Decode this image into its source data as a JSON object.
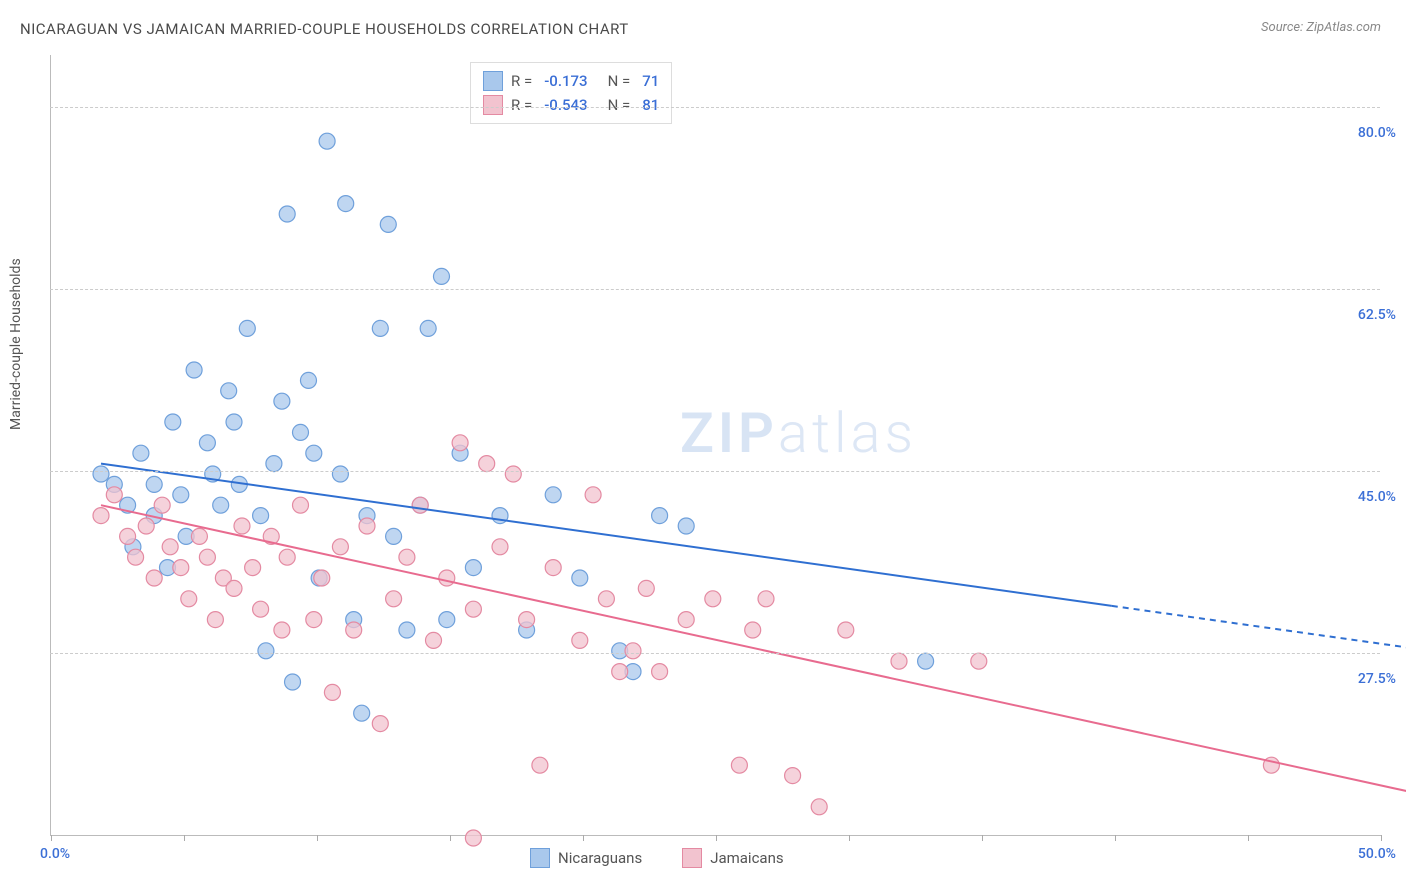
{
  "title": "NICARAGUAN VS JAMAICAN MARRIED-COUPLE HOUSEHOLDS CORRELATION CHART",
  "source_label": "Source: ZipAtlas.com",
  "ylabel": "Married-couple Households",
  "watermark": "ZIPatlas",
  "chart": {
    "type": "scatter",
    "background_color": "#ffffff",
    "grid_color": "#cccccc",
    "grid_dash": "4,4",
    "xlim": [
      0,
      50
    ],
    "ylim": [
      10,
      85
    ],
    "xticks": [
      0,
      5,
      10,
      15,
      20,
      25,
      30,
      35,
      40,
      45,
      50
    ],
    "xtick_labels_shown": {
      "0": "0.0%",
      "50": "50.0%"
    },
    "yticks": [
      27.5,
      45.0,
      62.5,
      80.0
    ],
    "ytick_labels": [
      "27.5%",
      "45.0%",
      "62.5%",
      "80.0%"
    ],
    "tick_label_color": "#3b6fd6",
    "tick_label_fontsize": 14,
    "ylabel_fontsize": 14,
    "series": [
      {
        "name": "Nicaraguans",
        "marker_fill": "#a9c8ec",
        "marker_stroke": "#6fa0db",
        "marker_radius": 8,
        "line_color": "#2f6fd1",
        "line_width": 2,
        "r_value": "-0.173",
        "n_value": "71",
        "regression": {
          "x0": 0,
          "y0": 51,
          "x1": 50,
          "y1": 33,
          "solid_to_x": 38
        },
        "points": [
          [
            0,
            50
          ],
          [
            0.5,
            49
          ],
          [
            1,
            47
          ],
          [
            1.2,
            43
          ],
          [
            1.5,
            52
          ],
          [
            2,
            46
          ],
          [
            2,
            49
          ],
          [
            2.5,
            41
          ],
          [
            2.7,
            55
          ],
          [
            3,
            48
          ],
          [
            3.2,
            44
          ],
          [
            3.5,
            60
          ],
          [
            4,
            53
          ],
          [
            4.2,
            50
          ],
          [
            4.5,
            47
          ],
          [
            4.8,
            58
          ],
          [
            5,
            55
          ],
          [
            5.2,
            49
          ],
          [
            5.5,
            64
          ],
          [
            6,
            46
          ],
          [
            6.2,
            33
          ],
          [
            6.5,
            51
          ],
          [
            6.8,
            57
          ],
          [
            7,
            75
          ],
          [
            7.2,
            30
          ],
          [
            7.5,
            54
          ],
          [
            7.8,
            59
          ],
          [
            8,
            52
          ],
          [
            8.2,
            40
          ],
          [
            8.5,
            82
          ],
          [
            9,
            50
          ],
          [
            9.2,
            76
          ],
          [
            9.5,
            36
          ],
          [
            9.8,
            27
          ],
          [
            10,
            46
          ],
          [
            10.5,
            64
          ],
          [
            10.8,
            74
          ],
          [
            11,
            44
          ],
          [
            11.5,
            35
          ],
          [
            12,
            47
          ],
          [
            12.3,
            64
          ],
          [
            12.8,
            69
          ],
          [
            13,
            36
          ],
          [
            13.5,
            52
          ],
          [
            14,
            41
          ],
          [
            15,
            46
          ],
          [
            16,
            35
          ],
          [
            17,
            48
          ],
          [
            18,
            40
          ],
          [
            19.5,
            33
          ],
          [
            20,
            31
          ],
          [
            21,
            46
          ],
          [
            22,
            45
          ],
          [
            31,
            32
          ]
        ]
      },
      {
        "name": "Jamaicans",
        "marker_fill": "#f2c3cf",
        "marker_stroke": "#e48aa2",
        "marker_radius": 8,
        "line_color": "#e86b8f",
        "line_width": 2,
        "r_value": "-0.543",
        "n_value": "81",
        "regression": {
          "x0": 0,
          "y0": 47,
          "x1": 50,
          "y1": 19,
          "solid_to_x": 50
        },
        "points": [
          [
            0,
            46
          ],
          [
            0.5,
            48
          ],
          [
            1,
            44
          ],
          [
            1.3,
            42
          ],
          [
            1.7,
            45
          ],
          [
            2,
            40
          ],
          [
            2.3,
            47
          ],
          [
            2.6,
            43
          ],
          [
            3,
            41
          ],
          [
            3.3,
            38
          ],
          [
            3.7,
            44
          ],
          [
            4,
            42
          ],
          [
            4.3,
            36
          ],
          [
            4.6,
            40
          ],
          [
            5,
            39
          ],
          [
            5.3,
            45
          ],
          [
            5.7,
            41
          ],
          [
            6,
            37
          ],
          [
            6.4,
            44
          ],
          [
            6.8,
            35
          ],
          [
            7,
            42
          ],
          [
            7.5,
            47
          ],
          [
            8,
            36
          ],
          [
            8.3,
            40
          ],
          [
            8.7,
            29
          ],
          [
            9,
            43
          ],
          [
            9.5,
            35
          ],
          [
            10,
            45
          ],
          [
            10.5,
            26
          ],
          [
            11,
            38
          ],
          [
            11.5,
            42
          ],
          [
            12,
            47
          ],
          [
            12.5,
            34
          ],
          [
            13,
            40
          ],
          [
            13.5,
            53
          ],
          [
            14,
            37
          ],
          [
            14.5,
            51
          ],
          [
            15,
            43
          ],
          [
            15.5,
            50
          ],
          [
            16,
            36
          ],
          [
            16.5,
            22
          ],
          [
            17,
            41
          ],
          [
            18,
            34
          ],
          [
            18.5,
            48
          ],
          [
            19,
            38
          ],
          [
            19.5,
            31
          ],
          [
            20,
            33
          ],
          [
            20.5,
            39
          ],
          [
            21,
            31
          ],
          [
            22,
            36
          ],
          [
            23,
            38
          ],
          [
            24,
            22
          ],
          [
            24.5,
            35
          ],
          [
            25,
            38
          ],
          [
            26,
            21
          ],
          [
            27,
            18
          ],
          [
            28,
            35
          ],
          [
            30,
            32
          ],
          [
            33,
            32
          ],
          [
            44,
            22
          ],
          [
            14,
            15
          ]
        ]
      }
    ],
    "legend_bottom": [
      {
        "label": "Nicaraguans",
        "fill": "#a9c8ec",
        "stroke": "#6fa0db"
      },
      {
        "label": "Jamaicans",
        "fill": "#f2c3cf",
        "stroke": "#e48aa2"
      }
    ],
    "legend_top": [
      {
        "fill": "#a9c8ec",
        "stroke": "#6fa0db",
        "r": "-0.173",
        "n": "71"
      },
      {
        "fill": "#f2c3cf",
        "stroke": "#e48aa2",
        "r": "-0.543",
        "n": "81"
      }
    ]
  }
}
